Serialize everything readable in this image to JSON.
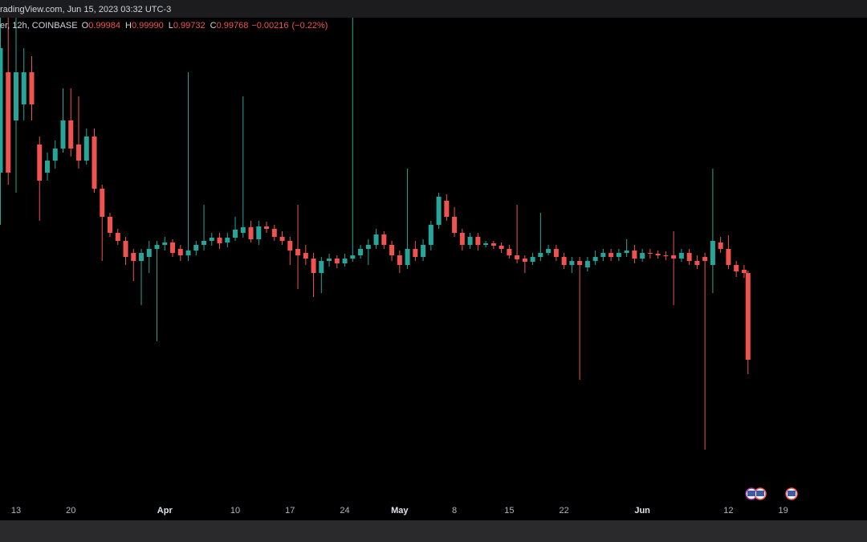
{
  "header": {
    "title": "radingView.com, Jun 15, 2023 03:32 UTC-3"
  },
  "chart_data": {
    "type": "candlestick",
    "symbol": "er, 12h, COINBASE",
    "legend": [
      {
        "key": "O",
        "value": 0.99984,
        "label": "0.99984"
      },
      {
        "key": "H",
        "value": 0.9999,
        "label": "0.99990"
      },
      {
        "key": "L",
        "value": 0.99732,
        "label": "0.99732"
      },
      {
        "key": "C",
        "value": 0.99768,
        "label": "0.99768"
      }
    ],
    "change": {
      "value": -0.00216,
      "label": "−0.00216"
    },
    "change_pct": {
      "value": -0.22,
      "label": "(−0.22%)"
    },
    "up_color": "#26a69a",
    "down_color": "#ef5350",
    "grid": false,
    "xlim": [
      -2.05,
      108.7
    ],
    "ylim": [
      0.99414,
      1.0062
    ],
    "xticks": [
      {
        "value": 0,
        "label": "13"
      },
      {
        "value": 7,
        "label": "20"
      },
      {
        "value": 19,
        "label": "Apr"
      },
      {
        "value": 28,
        "label": "10"
      },
      {
        "value": 35,
        "label": "17"
      },
      {
        "value": 42,
        "label": "24"
      },
      {
        "value": 49,
        "label": "May"
      },
      {
        "value": 56,
        "label": "8"
      },
      {
        "value": 63,
        "label": "15"
      },
      {
        "value": 70,
        "label": "22"
      },
      {
        "value": 80,
        "label": "Jun"
      },
      {
        "value": 91,
        "label": "12"
      },
      {
        "value": 98,
        "label": "19"
      }
    ],
    "x": [
      -2,
      -1,
      0,
      1,
      2,
      3,
      4,
      5,
      6,
      7,
      8,
      9,
      10,
      11,
      12,
      13,
      14,
      15,
      16,
      17,
      18,
      19,
      20,
      21,
      22,
      23,
      24,
      25,
      26,
      27,
      28,
      29,
      30,
      31,
      32,
      33,
      34,
      35,
      36,
      37,
      38,
      39,
      40,
      41,
      42,
      43,
      44,
      45,
      46,
      47,
      48,
      49,
      50,
      51,
      52,
      53,
      54,
      55,
      56,
      57,
      58,
      59,
      60,
      61,
      62,
      63,
      64,
      65,
      66,
      67,
      68,
      69,
      70,
      71,
      72,
      73,
      74,
      75,
      76,
      77,
      78,
      79,
      80,
      81,
      82,
      83,
      84,
      85,
      86,
      87,
      88,
      89,
      90,
      91,
      92,
      93,
      93.5
    ],
    "open": [
      1.00234,
      1.00484,
      1.00364,
      1.00404,
      1.00484,
      1.00304,
      1.00234,
      1.00264,
      1.00294,
      1.00364,
      1.00304,
      1.00264,
      1.00324,
      1.00194,
      1.00124,
      1.00084,
      1.00064,
      1.00034,
      1.00014,
      1.00024,
      1.00044,
      1.00054,
      1.0006,
      1.00044,
      1.00028,
      1.0004,
      1.00054,
      1.00064,
      1.00072,
      1.0006,
      1.00072,
      1.00084,
      1.00098,
      1.00068,
      1.001,
      1.00094,
      1.00074,
      1.00064,
      1.00044,
      1.00034,
      1.0002,
      0.99984,
      1.00014,
      1.0002,
      1.00008,
      1.0002,
      1.00028,
      1.00044,
      1.00054,
      1.0008,
      1.00054,
      1.00028,
      1.00004,
      1.00044,
      1.00024,
      1.00054,
      1.00104,
      1.00164,
      1.00124,
      1.00084,
      1.00054,
      1.00074,
      1.00054,
      1.00058,
      1.00052,
      1.00044,
      1.00028,
      1.0002,
      1.00012,
      1.00024,
      1.00034,
      1.00044,
      1.00024,
      1.00004,
      1.00014,
      0.99998,
      1.00014,
      1.00024,
      1.00034,
      1.00024,
      1.00034,
      1.0004,
      1.0002,
      1.00034,
      1.00032,
      1.00028,
      1.00028,
      1.0002,
      1.00034,
      1.00014,
      1.00024,
      1.00004,
      1.0006,
      1.00044,
      1.00004,
      0.99992,
      0.99984
    ],
    "high": [
      1.0062,
      1.0062,
      1.0062,
      1.00544,
      1.00524,
      1.00324,
      1.00284,
      1.00314,
      1.00444,
      1.00444,
      1.00424,
      1.00344,
      1.00344,
      1.00204,
      1.00134,
      1.00094,
      1.00074,
      1.00044,
      1.00044,
      1.00064,
      1.00064,
      1.00074,
      1.00068,
      1.00054,
      1.00484,
      1.00064,
      1.00154,
      1.00084,
      1.00084,
      1.00084,
      1.00124,
      1.00424,
      1.00114,
      1.00114,
      1.00112,
      1.00104,
      1.00088,
      1.00074,
      1.00154,
      1.00054,
      1.00034,
      1.00024,
      1.00032,
      1.00028,
      1.00032,
      1.0062,
      1.00054,
      1.00068,
      1.00094,
      1.00088,
      1.00064,
      1.0004,
      1.00244,
      1.00064,
      1.00068,
      1.00114,
      1.00184,
      1.0018,
      1.00148,
      1.00094,
      1.00084,
      1.00084,
      1.00064,
      1.00064,
      1.0006,
      1.00054,
      1.00154,
      1.00028,
      1.00034,
      1.00134,
      1.00054,
      1.00054,
      1.00034,
      1.00024,
      1.00024,
      1.00024,
      1.0004,
      1.00044,
      1.00044,
      1.00044,
      1.00068,
      1.00054,
      1.00044,
      1.00044,
      1.0004,
      1.00038,
      1.00088,
      1.00044,
      1.00044,
      1.00028,
      1.00034,
      1.00244,
      1.00074,
      1.00078,
      1.00014,
      1.00004,
      0.9999
    ],
    "low": [
      1.00104,
      1.00204,
      1.00184,
      1.00364,
      1.00364,
      1.00114,
      1.00214,
      1.00244,
      1.00284,
      1.00274,
      1.00244,
      1.00254,
      1.00184,
      1.00014,
      1.00074,
      1.00054,
      1.00004,
      0.99964,
      0.99904,
      0.99984,
      0.99814,
      1.0004,
      1.00024,
      1.00014,
      1.00014,
      1.00028,
      1.0004,
      1.00052,
      1.00044,
      1.00048,
      1.00064,
      1.00072,
      1.0006,
      1.00054,
      1.00084,
      1.00064,
      1.00054,
      1.00004,
      0.99944,
      1.00004,
      0.99924,
      0.99934,
      1.0,
      0.99996,
      1.0,
      1.00012,
      1.0002,
      1.00004,
      1.00044,
      1.00044,
      1.00014,
      0.99984,
      0.99994,
      1.00014,
      1.00014,
      1.0004,
      1.00094,
      1.00114,
      1.00074,
      1.0004,
      1.00044,
      1.0004,
      1.00048,
      1.00044,
      1.00034,
      1.0002,
      1.00008,
      0.99984,
      1.00004,
      1.00014,
      1.00028,
      1.00014,
      0.99994,
      0.99984,
      0.99718,
      0.99988,
      1.00004,
      1.00014,
      1.00014,
      1.00014,
      1.00024,
      1.00008,
      1.00012,
      1.0002,
      1.0002,
      1.00016,
      0.99904,
      1.00012,
      1.00004,
      0.99994,
      0.99544,
      0.99934,
      1.00034,
      0.99994,
      0.99974,
      0.99972,
      0.99732
    ],
    "close": [
      1.00544,
      1.00234,
      1.00484,
      1.00484,
      1.00404,
      1.00214,
      1.00264,
      1.00294,
      1.00364,
      1.00294,
      1.00264,
      1.00324,
      1.00194,
      1.00124,
      1.00084,
      1.00064,
      1.00024,
      1.00014,
      1.00034,
      1.00044,
      1.00054,
      1.0006,
      1.00034,
      1.00028,
      1.0004,
      1.00054,
      1.00064,
      1.00072,
      1.00058,
      1.00072,
      1.00092,
      1.00098,
      1.00068,
      1.001,
      1.00094,
      1.00074,
      1.00064,
      1.0004,
      1.00028,
      1.0002,
      0.99984,
      1.00014,
      1.0002,
      1.00008,
      1.0002,
      1.00028,
      1.00044,
      1.00054,
      1.0008,
      1.00054,
      1.00028,
      1.00004,
      1.00044,
      1.00024,
      1.00054,
      1.00104,
      1.00174,
      1.00124,
      1.00084,
      1.00054,
      1.00074,
      1.00054,
      1.00058,
      1.00052,
      1.00044,
      1.00028,
      1.00018,
      1.00012,
      1.00024,
      1.00034,
      1.00044,
      1.00024,
      1.00004,
      1.00014,
      1.00004,
      1.00014,
      1.00024,
      1.00034,
      1.00024,
      1.00034,
      1.0004,
      1.0002,
      1.00034,
      1.00032,
      1.00028,
      1.00026,
      1.0002,
      1.00034,
      1.00014,
      1.00004,
      1.00014,
      1.00064,
      1.00044,
      1.00004,
      0.99988,
      0.99984,
      0.99768
    ]
  }
}
